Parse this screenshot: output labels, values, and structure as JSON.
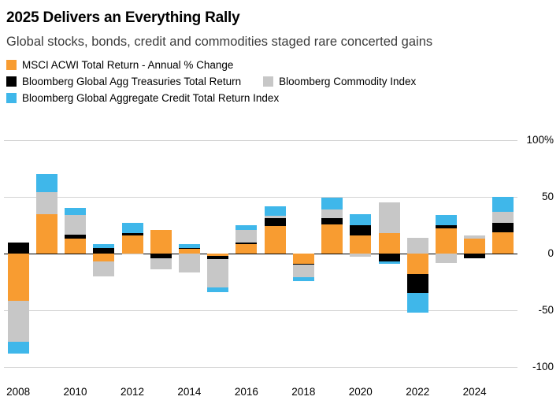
{
  "header": {
    "title": "2025 Delivers an Everything Rally",
    "subtitle": "Global stocks, bonds, credit and commodities staged rare concerted gains"
  },
  "legend": {
    "items": [
      {
        "label": "MSCI ACWI Total Return - Annual % Change",
        "color_key": "orange"
      },
      {
        "label": "Bloomberg Global Agg Treasuries Total Return",
        "color_key": "black"
      },
      {
        "label": "Bloomberg Commodity Index",
        "color_key": "gray"
      },
      {
        "label": "Bloomberg Global Aggregate Credit Total Return Index",
        "color_key": "blue"
      }
    ]
  },
  "colors": {
    "orange": "#F89C31",
    "black": "#000000",
    "gray": "#C7C7C7",
    "blue": "#3FB7EA",
    "gridline": "#d2d2d2",
    "zero_line": "#000000"
  },
  "chart_data": {
    "type": "bar",
    "stacked": true,
    "unit": "%",
    "title": "2025 Delivers an Everything Rally",
    "grid": true,
    "legend_position": "top",
    "ylim": [
      -100,
      100
    ],
    "years": [
      2008,
      2009,
      2010,
      2011,
      2012,
      2013,
      2014,
      2015,
      2016,
      2017,
      2018,
      2019,
      2020,
      2021,
      2022,
      2023,
      2024,
      2025
    ],
    "series": [
      {
        "name": "MSCI ACWI Total Return - Annual % Change",
        "color_key": "orange",
        "values": [
          -42,
          35,
          13,
          -7,
          16,
          21,
          4,
          -2,
          8,
          24,
          -9,
          26,
          16,
          18,
          -18,
          22,
          13,
          19
        ]
      },
      {
        "name": "Bloomberg Global Agg Treasuries Total Return",
        "color_key": "black",
        "values": [
          10,
          -1,
          4,
          5,
          2,
          -4,
          1,
          -3,
          2,
          7,
          -1,
          5,
          9,
          -7,
          -17,
          3,
          -4,
          8
        ]
      },
      {
        "name": "Bloomberg Commodity Index",
        "color_key": "gray",
        "values": [
          -36,
          19,
          17,
          -13,
          -1,
          -10,
          -17,
          -25,
          11,
          2,
          -11,
          8,
          -3,
          27,
          14,
          -8,
          3,
          10
        ]
      },
      {
        "name": "Bloomberg Global Aggregate Credit Total Return Index",
        "color_key": "blue",
        "values": [
          -10,
          16,
          6,
          3,
          9,
          0,
          3,
          -4,
          4,
          9,
          -3,
          10,
          10,
          -2,
          -17,
          9,
          0,
          13
        ]
      }
    ],
    "yticks": [
      {
        "label": "100%",
        "value": 100
      },
      {
        "label": "50",
        "value": 50
      },
      {
        "label": "0",
        "value": 0
      },
      {
        "label": "-50",
        "value": -50
      },
      {
        "label": "-100",
        "value": -100
      }
    ],
    "xticks": [
      "2008",
      "2010",
      "2012",
      "2014",
      "2016",
      "2018",
      "2020",
      "2022",
      "2024"
    ]
  }
}
